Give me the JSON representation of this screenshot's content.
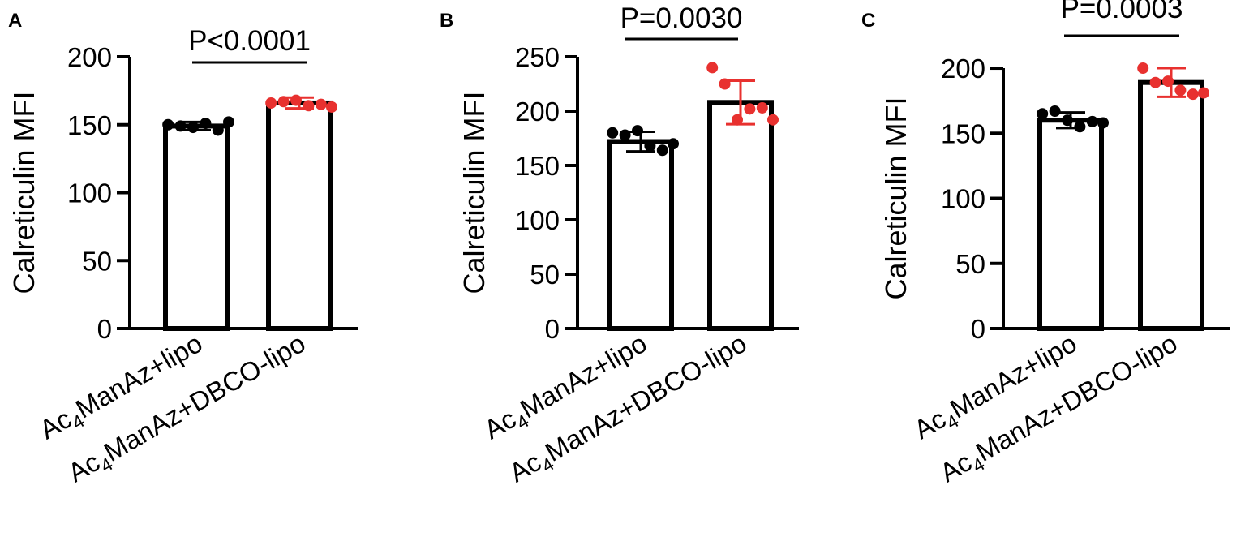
{
  "figure": {
    "background": "#ffffff"
  },
  "colors": {
    "group1": "#000000",
    "group2": "#e8312f",
    "axis": "#000000"
  },
  "chart_data": [
    {
      "type": "bar",
      "panel": "A",
      "ylabel": "Calreticulin MFI",
      "ylim": [
        0,
        200
      ],
      "yticks": [
        0,
        50,
        100,
        150,
        200
      ],
      "categories": [
        "Ac4ManAz+lipo",
        "Ac4ManAz+DBCO-lipo"
      ],
      "values": [
        149,
        166
      ],
      "error": [
        3,
        4
      ],
      "points": [
        [
          150,
          149,
          148,
          151,
          146,
          152
        ],
        [
          166,
          167,
          168,
          164,
          165,
          163
        ]
      ],
      "pvalue": "P<0.0001"
    },
    {
      "type": "bar",
      "panel": "B",
      "ylabel": "Calreticulin MFI",
      "ylim": [
        0,
        250
      ],
      "yticks": [
        0,
        50,
        100,
        150,
        200,
        250
      ],
      "categories": [
        "Ac4ManAz+lipo",
        "Ac4ManAz+DBCO-lipo"
      ],
      "values": [
        172,
        208
      ],
      "error": [
        9,
        20
      ],
      "points": [
        [
          180,
          178,
          182,
          168,
          164,
          170
        ],
        [
          240,
          225,
          192,
          202,
          203,
          192
        ]
      ],
      "pvalue": "P=0.0030"
    },
    {
      "type": "bar",
      "panel": "C",
      "ylabel": "Calreticulin MFI",
      "ylim": [
        0,
        210
      ],
      "yticks": [
        0,
        50,
        100,
        150,
        200
      ],
      "categories": [
        "Ac4ManAz+lipo",
        "Ac4ManAz+DBCO-lipo"
      ],
      "values": [
        160,
        189
      ],
      "error": [
        6,
        11
      ],
      "points": [
        [
          165,
          167,
          160,
          155,
          159,
          158
        ],
        [
          200,
          189,
          190,
          183,
          180,
          181
        ]
      ],
      "pvalue": "P=0.0003"
    }
  ]
}
